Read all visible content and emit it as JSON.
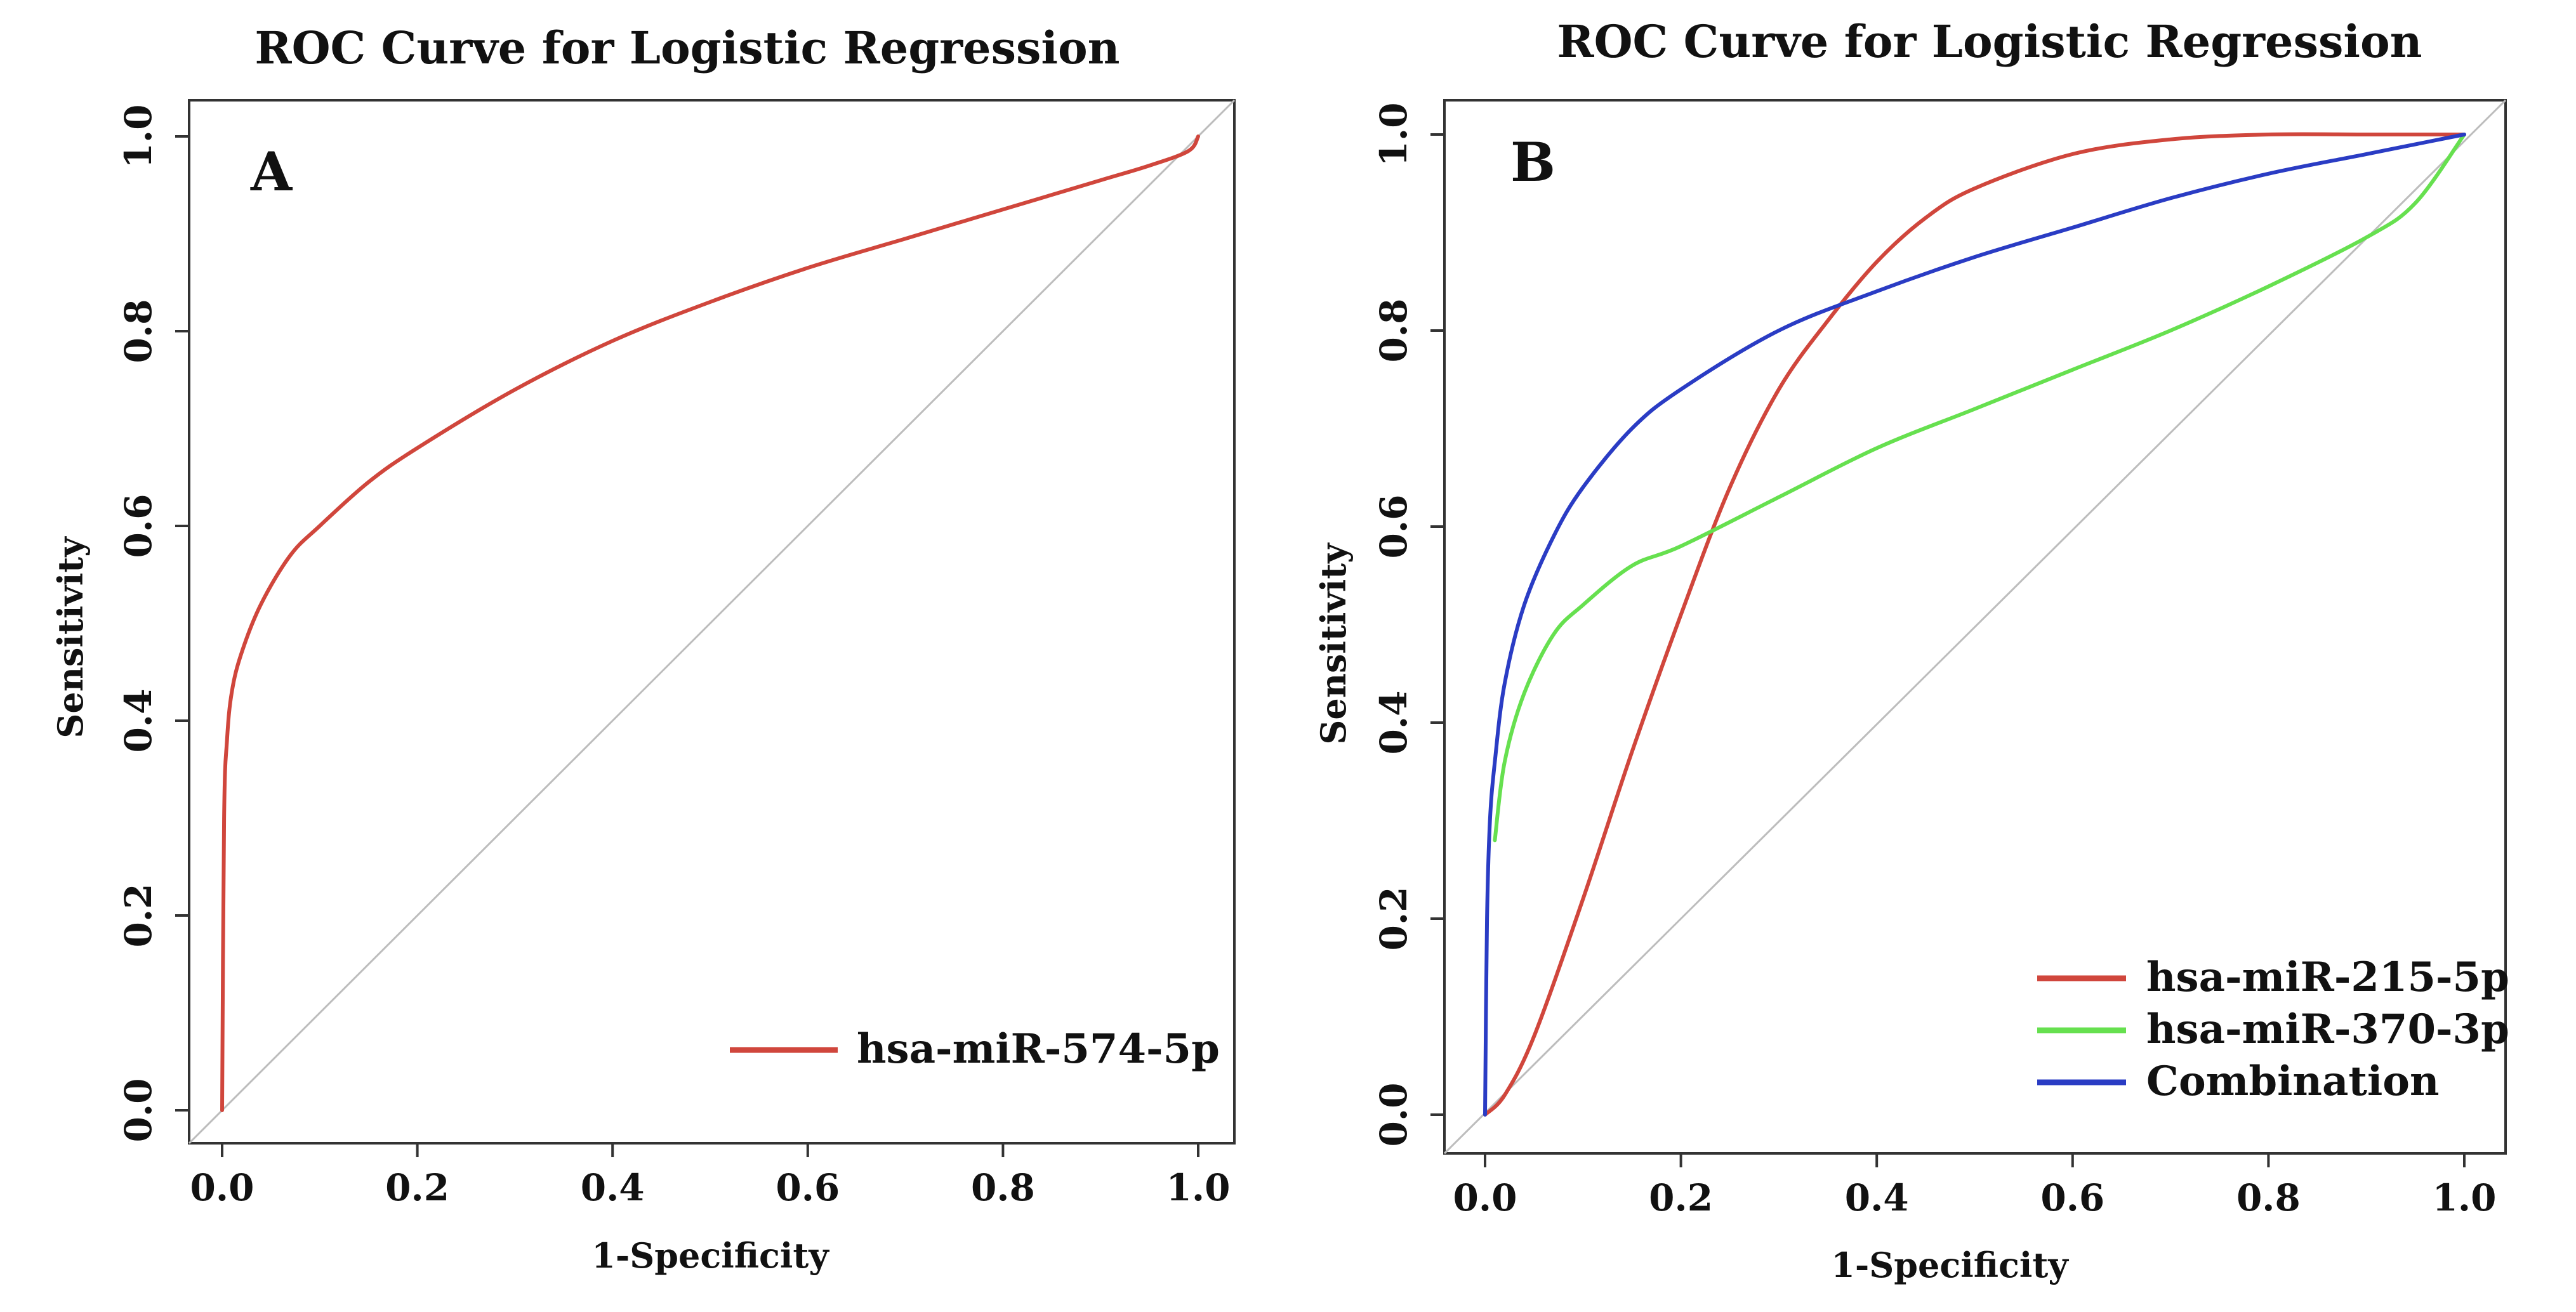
{
  "chart_data": [
    {
      "panel": "A",
      "type": "line",
      "title": "ROC Curve for Logistic Regression",
      "xlabel": "1-Specificity",
      "ylabel": "Sensitivity",
      "xlim": [
        0,
        1
      ],
      "ylim": [
        0,
        1
      ],
      "xticks": [
        "0.0",
        "0.2",
        "0.4",
        "0.6",
        "0.8",
        "1.0"
      ],
      "yticks": [
        "0.0",
        "0.2",
        "0.4",
        "0.6",
        "0.8",
        "1.0"
      ],
      "legend_position": "bottom-right",
      "reference_line": true,
      "series": [
        {
          "name": "hsa-miR-574-5p",
          "color": "#d0463c",
          "x": [
            0,
            0.002,
            0.005,
            0.01,
            0.02,
            0.04,
            0.07,
            0.1,
            0.15,
            0.2,
            0.3,
            0.4,
            0.5,
            0.6,
            0.7,
            0.8,
            0.9,
            0.95,
            0.99,
            1.0
          ],
          "y": [
            0,
            0.3,
            0.38,
            0.43,
            0.47,
            0.52,
            0.57,
            0.6,
            0.645,
            0.68,
            0.74,
            0.79,
            0.83,
            0.865,
            0.895,
            0.925,
            0.955,
            0.97,
            0.985,
            1.0
          ]
        }
      ]
    },
    {
      "panel": "B",
      "type": "line",
      "title": "ROC Curve for Logistic Regression",
      "xlabel": "1-Specificity",
      "ylabel": "Sensitivity",
      "xlim": [
        0,
        1
      ],
      "ylim": [
        0,
        1
      ],
      "xticks": [
        "0.0",
        "0.2",
        "0.4",
        "0.6",
        "0.8",
        "1.0"
      ],
      "yticks": [
        "0.0",
        "0.2",
        "0.4",
        "0.6",
        "0.8",
        "1.0"
      ],
      "legend_position": "bottom-right",
      "reference_line": true,
      "series": [
        {
          "name": "hsa-miR-215-5p",
          "color": "#d0463c",
          "x": [
            0,
            0.02,
            0.05,
            0.1,
            0.15,
            0.2,
            0.25,
            0.3,
            0.35,
            0.4,
            0.45,
            0.5,
            0.6,
            0.7,
            0.8,
            0.9,
            1.0
          ],
          "y": [
            0,
            0.02,
            0.08,
            0.22,
            0.37,
            0.51,
            0.64,
            0.74,
            0.81,
            0.87,
            0.915,
            0.945,
            0.98,
            0.995,
            1.0,
            1.0,
            1.0
          ]
        },
        {
          "name": "hsa-miR-370-3p",
          "color": "#66e04f",
          "x": [
            0.01,
            0.02,
            0.04,
            0.07,
            0.1,
            0.15,
            0.2,
            0.3,
            0.4,
            0.5,
            0.6,
            0.7,
            0.8,
            0.9,
            0.95,
            1.0
          ],
          "y": [
            0.28,
            0.36,
            0.43,
            0.49,
            0.52,
            0.56,
            0.58,
            0.63,
            0.68,
            0.72,
            0.76,
            0.8,
            0.845,
            0.895,
            0.93,
            1.0
          ]
        },
        {
          "name": "Combination",
          "color": "#2a3cc4",
          "x": [
            0,
            0.002,
            0.005,
            0.01,
            0.02,
            0.04,
            0.07,
            0.1,
            0.15,
            0.2,
            0.3,
            0.4,
            0.5,
            0.6,
            0.7,
            0.8,
            0.9,
            1.0
          ],
          "y": [
            0,
            0.2,
            0.3,
            0.36,
            0.44,
            0.52,
            0.59,
            0.64,
            0.7,
            0.74,
            0.8,
            0.84,
            0.875,
            0.905,
            0.935,
            0.96,
            0.98,
            1.0
          ]
        }
      ]
    }
  ]
}
